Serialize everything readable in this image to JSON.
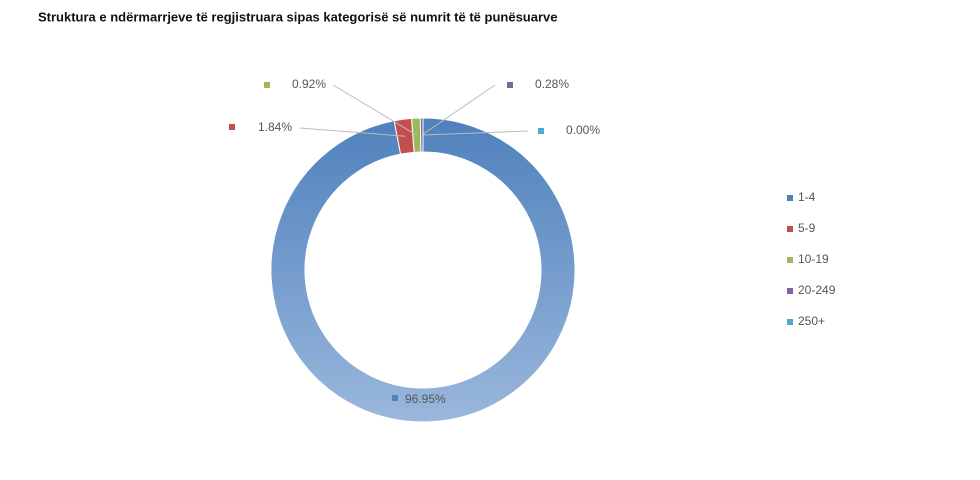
{
  "chart_data": {
    "type": "donut",
    "title": "Struktura e ndërmarrjeve të regjistruara sipas kategorisë së numrit të të punësuarve",
    "categories": [
      "1-4",
      "5-9",
      "10-19",
      "20-249",
      "250+"
    ],
    "values": [
      96.95,
      1.84,
      0.92,
      0.28,
      0.0
    ],
    "value_labels": [
      "96.95%",
      "1.84%",
      "0.92%",
      "0.28%",
      "0.00%"
    ],
    "colors": [
      "#4f81bd",
      "#c0504d",
      "#9bbb59",
      "#8064a2",
      "#4bacc6"
    ],
    "legend": "right"
  }
}
